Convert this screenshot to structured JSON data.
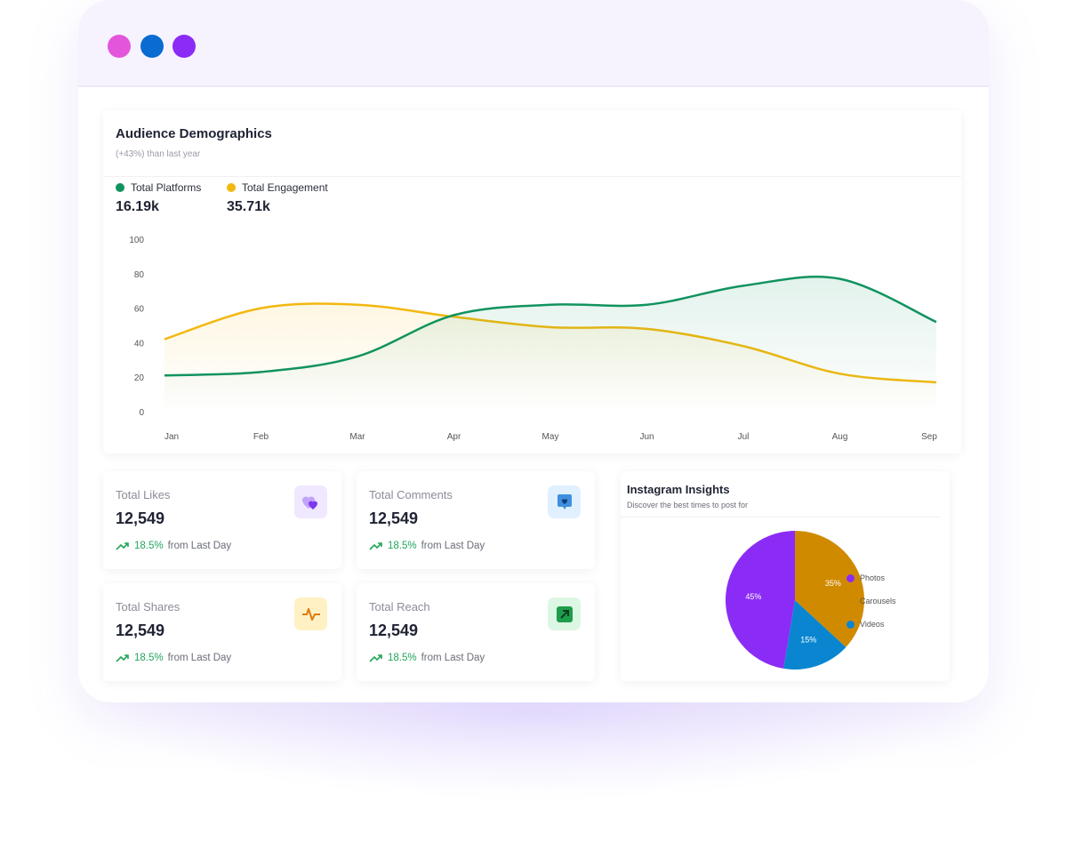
{
  "window": {
    "dots": [
      "#e356dc",
      "#0a6bd1",
      "#8a2cf5"
    ]
  },
  "demographics": {
    "title": "Audience Demographics",
    "subtitle": "(+43%) than last year",
    "legend": [
      {
        "label": "Total Platforms",
        "value": "16.19k",
        "color": "#11935e"
      },
      {
        "label": "Total Engagement",
        "value": "35.71k",
        "color": "#f2b80f"
      }
    ]
  },
  "chart_data": {
    "type": "area",
    "categories": [
      "Jan",
      "Feb",
      "Mar",
      "Apr",
      "May",
      "Jun",
      "Jul",
      "Aug",
      "Sep"
    ],
    "yticks": [
      0,
      20,
      40,
      60,
      80,
      100
    ],
    "ylim": [
      0,
      100
    ],
    "grid": false,
    "series": [
      {
        "name": "Total Platforms",
        "color": "#11935e",
        "values": [
          21,
          23,
          32,
          56,
          62,
          62,
          73,
          77,
          52
        ]
      },
      {
        "name": "Total Engagement",
        "color": "#f2b80f",
        "values": [
          42,
          60,
          62,
          55,
          49,
          48,
          38,
          22,
          17
        ]
      }
    ]
  },
  "stats": [
    {
      "title": "Total Likes",
      "value": "12,549",
      "change": "18.5%",
      "suffix": "from Last Day",
      "icon": "hearts-icon",
      "bg": "#efe8ff",
      "fg": "#7c3aed"
    },
    {
      "title": "Total Comments",
      "value": "12,549",
      "change": "18.5%",
      "suffix": "from Last Day",
      "icon": "comment-heart-icon",
      "bg": "#e0f0ff",
      "fg": "#1877d6"
    },
    {
      "title": "Total Shares",
      "value": "12,549",
      "change": "18.5%",
      "suffix": "from Last Day",
      "icon": "pulse-icon",
      "bg": "#fff1c4",
      "fg": "#e07b10"
    },
    {
      "title": "Total Reach",
      "value": "12,549",
      "change": "18.5%",
      "suffix": "from Last Day",
      "icon": "arrow-up-right-icon",
      "bg": "#dcf7e3",
      "fg": "#1f9d4c"
    }
  ],
  "insights": {
    "title": "Instagram Insights",
    "subtitle": "Discover the best times to post for",
    "chart_data": {
      "type": "pie",
      "slices": [
        {
          "label": "Carousels",
          "value": 35,
          "text": "35%",
          "color": "#d08a00"
        },
        {
          "label": "Videos",
          "value": 15,
          "text": "15%",
          "color": "#0a86d0"
        },
        {
          "label": "Photos",
          "value": 45,
          "text": "45%",
          "color": "#8a2cf5"
        }
      ],
      "legend": [
        "Photos",
        "Carousels",
        "Videos"
      ]
    }
  }
}
